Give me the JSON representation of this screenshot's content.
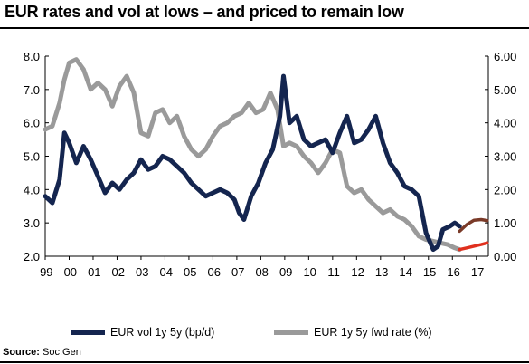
{
  "title": "EUR rates and vol at lows – and priced to remain low",
  "source": {
    "label": "Source:",
    "text": "Soc.Gen"
  },
  "colors": {
    "vol": "#14254f",
    "fwd": "#9a9a9a",
    "vol_fwd": "#7a3a28",
    "fwd_fwd": "#e0301e"
  },
  "chart_data": {
    "type": "line",
    "xlabel": "",
    "ylabel": "",
    "x_ticks": [
      "99",
      "00",
      "01",
      "02",
      "03",
      "04",
      "05",
      "06",
      "07",
      "08",
      "09",
      "10",
      "11",
      "12",
      "13",
      "14",
      "15",
      "16",
      "17"
    ],
    "x_range": [
      1999,
      2017.5
    ],
    "y_left": {
      "range": [
        2.0,
        8.0
      ],
      "ticks": [
        "2.0",
        "3.0",
        "4.0",
        "5.0",
        "6.0",
        "7.0",
        "8.0"
      ]
    },
    "y_right": {
      "range": [
        0.0,
        6.0
      ],
      "ticks": [
        "0.00",
        "1.00",
        "2.00",
        "3.00",
        "4.00",
        "5.00",
        "6.00"
      ]
    },
    "series": [
      {
        "name": "EUR vol 1y 5y (bp/d)",
        "axis": "left",
        "color": "#14254f",
        "x": [
          1999.0,
          1999.3,
          1999.6,
          1999.8,
          2000.0,
          2000.3,
          2000.6,
          2000.9,
          2001.2,
          2001.5,
          2001.8,
          2002.1,
          2002.4,
          2002.7,
          2003.0,
          2003.3,
          2003.6,
          2003.9,
          2004.2,
          2004.5,
          2004.8,
          2005.1,
          2005.4,
          2005.7,
          2006.0,
          2006.3,
          2006.6,
          2006.9,
          2007.1,
          2007.3,
          2007.6,
          2007.9,
          2008.2,
          2008.5,
          2008.8,
          2008.95,
          2009.2,
          2009.5,
          2009.8,
          2010.1,
          2010.4,
          2010.7,
          2011.0,
          2011.3,
          2011.6,
          2011.9,
          2012.2,
          2012.5,
          2012.8,
          2013.1,
          2013.4,
          2013.7,
          2014.0,
          2014.3,
          2014.6,
          2014.9,
          2015.2,
          2015.4,
          2015.6,
          2015.9,
          2016.1,
          2016.3
        ],
        "y": [
          3.8,
          3.6,
          4.3,
          5.7,
          5.4,
          4.8,
          5.3,
          4.9,
          4.4,
          3.9,
          4.2,
          4.0,
          4.3,
          4.5,
          4.9,
          4.6,
          4.7,
          5.0,
          4.9,
          4.7,
          4.5,
          4.2,
          4.0,
          3.8,
          3.9,
          4.0,
          3.9,
          3.7,
          3.3,
          3.1,
          3.8,
          4.2,
          4.8,
          5.2,
          6.2,
          7.4,
          6.0,
          6.2,
          5.5,
          5.3,
          5.4,
          5.5,
          5.1,
          5.7,
          6.2,
          5.4,
          5.5,
          5.8,
          6.2,
          5.4,
          4.8,
          4.5,
          4.1,
          4.0,
          3.8,
          2.7,
          2.2,
          2.3,
          2.8,
          2.9,
          3.0,
          2.9
        ]
      },
      {
        "name": "EUR 1y 5y fwd rate (%)",
        "axis": "right",
        "color": "#9a9a9a",
        "x": [
          1999.0,
          1999.3,
          1999.6,
          1999.8,
          2000.0,
          2000.3,
          2000.6,
          2000.9,
          2001.2,
          2001.5,
          2001.8,
          2002.1,
          2002.4,
          2002.7,
          2003.0,
          2003.3,
          2003.6,
          2003.9,
          2004.2,
          2004.5,
          2004.8,
          2005.1,
          2005.4,
          2005.7,
          2006.0,
          2006.3,
          2006.6,
          2006.9,
          2007.2,
          2007.5,
          2007.8,
          2008.1,
          2008.4,
          2008.7,
          2008.95,
          2009.2,
          2009.5,
          2009.8,
          2010.1,
          2010.4,
          2010.7,
          2011.0,
          2011.3,
          2011.6,
          2011.9,
          2012.2,
          2012.5,
          2012.8,
          2013.1,
          2013.4,
          2013.7,
          2014.0,
          2014.3,
          2014.6,
          2014.9,
          2015.2,
          2015.5,
          2015.8,
          2016.1,
          2016.3
        ],
        "y": [
          3.8,
          3.9,
          4.6,
          5.3,
          5.8,
          5.9,
          5.6,
          5.0,
          5.2,
          5.0,
          4.5,
          5.1,
          5.4,
          4.9,
          3.7,
          3.6,
          4.3,
          4.4,
          4.0,
          4.2,
          3.6,
          3.2,
          3.0,
          3.2,
          3.6,
          3.9,
          4.0,
          4.2,
          4.3,
          4.6,
          4.3,
          4.4,
          4.9,
          4.4,
          3.3,
          3.4,
          3.3,
          3.0,
          2.8,
          2.5,
          2.8,
          3.2,
          3.1,
          2.1,
          1.9,
          2.0,
          1.7,
          1.5,
          1.3,
          1.4,
          1.2,
          1.1,
          0.9,
          0.6,
          0.5,
          0.45,
          0.4,
          0.35,
          0.25,
          0.2
        ]
      },
      {
        "name": "",
        "axis": "left",
        "color": "#7a3a28",
        "forward": true,
        "x": [
          2016.3,
          2016.6,
          2016.9,
          2017.2,
          2017.45
        ],
        "y": [
          2.75,
          2.95,
          3.08,
          3.1,
          3.07
        ]
      },
      {
        "name": "",
        "axis": "right",
        "color": "#e0301e",
        "forward": true,
        "x": [
          2016.3,
          2016.6,
          2016.9,
          2017.2,
          2017.45
        ],
        "y": [
          0.2,
          0.25,
          0.3,
          0.35,
          0.4
        ]
      }
    ],
    "legend_position": "bottom",
    "grid": false
  }
}
